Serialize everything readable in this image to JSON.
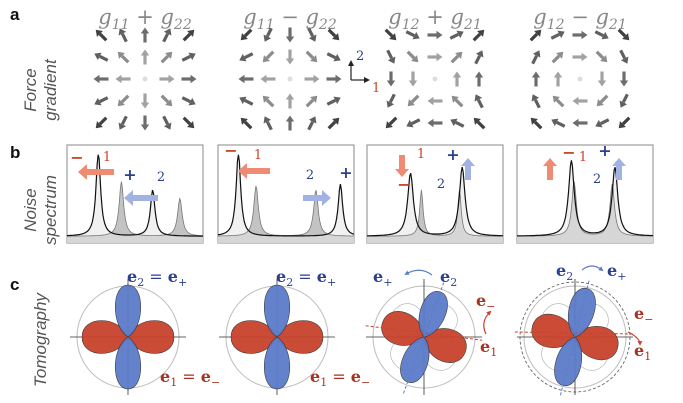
{
  "panels": {
    "a": "a",
    "b": "b",
    "c": "c"
  },
  "rows": {
    "a_line1": "Force",
    "a_line2": "gradient",
    "b_line1": "Noise",
    "b_line2": "spectrum",
    "c_line1": "Tomography"
  },
  "headers": [
    {
      "l1": "g",
      "s1": "11",
      "op": "+",
      "l2": "g",
      "s2": "22"
    },
    {
      "l1": "g",
      "s1": "11",
      "op": "−",
      "l2": "g",
      "s2": "22"
    },
    {
      "l1": "g",
      "s1": "12",
      "op": "+",
      "l2": "g",
      "s2": "21"
    },
    {
      "l1": "g",
      "s1": "12",
      "op": "−",
      "l2": "g",
      "s2": "21"
    }
  ],
  "axes": {
    "axis1": "1",
    "axis2": "2"
  },
  "spectrum_labels": {
    "minus": "−",
    "plus": "+",
    "mode1": "1",
    "mode2": "2"
  },
  "tomo_labels": {
    "e": "e",
    "sub2": "2",
    "subp": "+",
    "sub1": "1",
    "subm": "−",
    "eq": "="
  },
  "colors": {
    "red": "#c9432c",
    "blue": "#5b7cc9",
    "red_arrow": "#ee8b72",
    "blue_arrow": "#a2b3e3",
    "gray": "#8a8a8a",
    "text_blue": "#2a3f8f",
    "text_red": "#a8321f"
  }
}
